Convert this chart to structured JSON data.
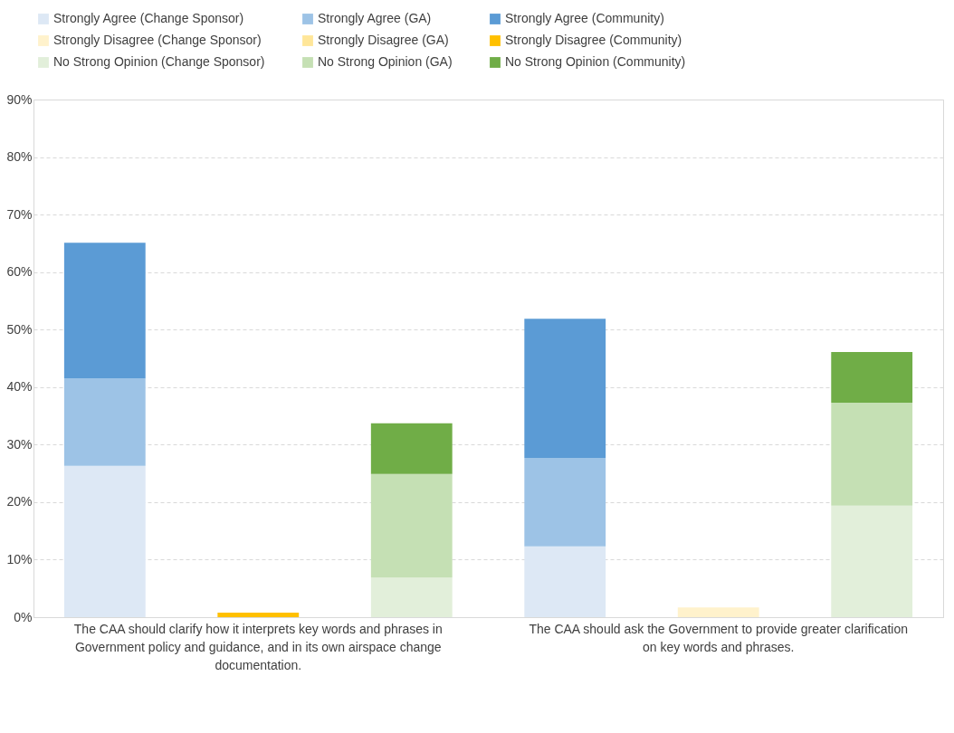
{
  "chart_data": {
    "type": "bar",
    "stacked": true,
    "categories": [
      null,
      "The CAA should clarify how it interprets key words and phrases in Government policy and guidance, and in its own airspace change documentation.",
      null,
      null,
      "The CAA should ask the Government to provide greater clarification on key words and phrases.",
      null
    ],
    "series": [
      {
        "name": "Strongly Agree (Change Sponsor)",
        "color": "#dde8f5",
        "values": [
          26.3,
          null,
          null,
          12.3,
          null,
          null
        ]
      },
      {
        "name": "Strongly Agree (GA)",
        "color": "#9dc3e6",
        "values": [
          15.2,
          null,
          null,
          15.4,
          null,
          null
        ]
      },
      {
        "name": "Strongly Agree (Community)",
        "color": "#5b9bd5",
        "values": [
          23.6,
          null,
          null,
          24.2,
          null,
          null
        ]
      },
      {
        "name": "Strongly Disagree (Change Sponsor)",
        "color": "#fff2cc",
        "values": [
          null,
          0,
          null,
          null,
          1.7,
          null
        ]
      },
      {
        "name": "Strongly Disagree (GA)",
        "color": "#ffe699",
        "values": [
          null,
          0,
          null,
          null,
          0,
          null
        ]
      },
      {
        "name": "Strongly Disagree (Community)",
        "color": "#ffc000",
        "values": [
          null,
          0.8,
          null,
          null,
          0,
          null
        ]
      },
      {
        "name": "No Strong Opinion (Change Sponsor)",
        "color": "#e2efda",
        "values": [
          null,
          null,
          6.9,
          null,
          null,
          19.4
        ]
      },
      {
        "name": "No Strong Opinion (GA)",
        "color": "#c5e0b4",
        "values": [
          null,
          null,
          18.0,
          null,
          null,
          17.9
        ]
      },
      {
        "name": "No Strong Opinion (Community)",
        "color": "#70ad47",
        "values": [
          null,
          null,
          8.8,
          null,
          null,
          8.8
        ]
      }
    ],
    "ylim": [
      0,
      90
    ],
    "yticks": [
      {
        "value": 0,
        "label": "0%"
      },
      {
        "value": 10,
        "label": "10%"
      },
      {
        "value": 20,
        "label": "20%"
      },
      {
        "value": 30,
        "label": "30%"
      },
      {
        "value": 40,
        "label": "40%"
      },
      {
        "value": 50,
        "label": "50%"
      },
      {
        "value": 60,
        "label": "60%"
      },
      {
        "value": 70,
        "label": "70%"
      },
      {
        "value": 80,
        "label": "80%"
      },
      {
        "value": 90,
        "label": "90%"
      }
    ],
    "grid": "y",
    "legend": "top"
  }
}
